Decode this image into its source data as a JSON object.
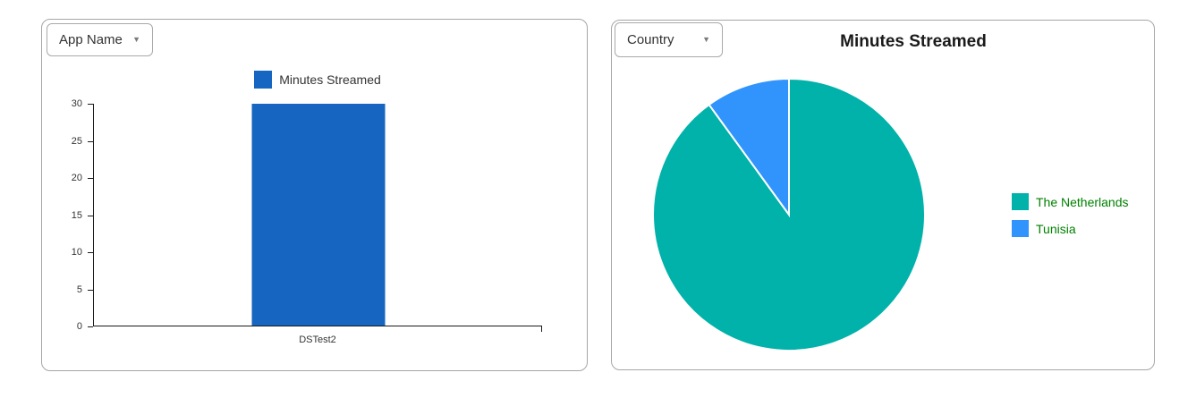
{
  "icons": {
    "dropdown_caret": "▼"
  },
  "left_panel": {
    "dropdown": {
      "label": "App Name"
    },
    "chart_data": {
      "type": "bar",
      "title": "",
      "categories": [
        "DSTest2"
      ],
      "series": [
        {
          "name": "Minutes Streamed",
          "values": [
            30
          ],
          "color": "#1666c1"
        }
      ],
      "xlabel": "",
      "ylabel": "",
      "ylim": [
        0,
        30
      ],
      "yticks": [
        0,
        5,
        10,
        15,
        20,
        25,
        30
      ],
      "grid": false,
      "legend_position": "top",
      "axis_color": "#1a1a1a"
    }
  },
  "right_panel": {
    "dropdown": {
      "label": "Country"
    },
    "chart_data": {
      "type": "pie",
      "title": "Minutes Streamed",
      "slices": [
        {
          "label": "The Netherlands",
          "value": 90,
          "color": "#00b2a9"
        },
        {
          "label": "Tunisia",
          "value": 10,
          "color": "#3094fc"
        }
      ],
      "value_unit": "percent-estimated",
      "start_angle": "top",
      "direction": "clockwise",
      "slice_border_color": "#ffffff",
      "legend_position": "right",
      "legend_text_color": "#008000"
    }
  }
}
